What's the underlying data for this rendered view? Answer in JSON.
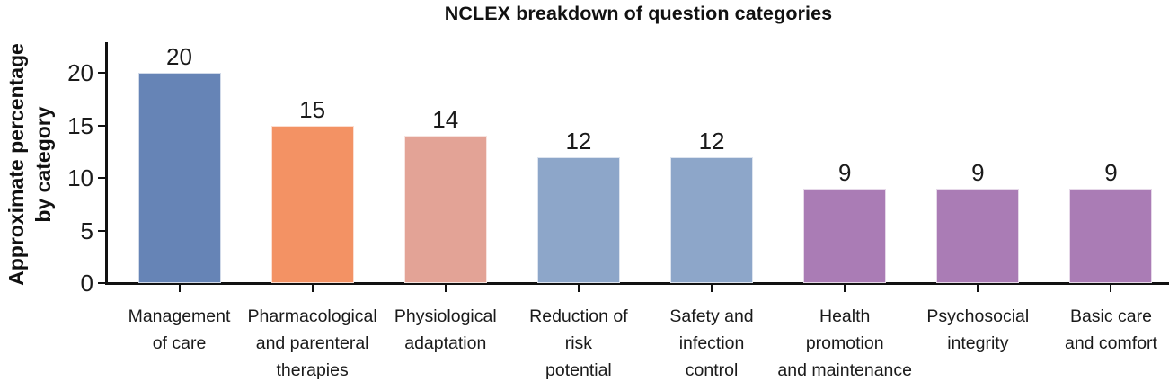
{
  "chart_data": {
    "type": "bar",
    "title": "NCLEX breakdown of question categories",
    "xlabel": "",
    "ylabel": "Approximate percentage by category",
    "ylabel_lines": [
      "Approximate percentage",
      "by category"
    ],
    "yticks": [
      0,
      5,
      10,
      15,
      20
    ],
    "ylim": [
      0,
      23
    ],
    "grid": false,
    "legend": false,
    "categories": [
      "Management of care",
      "Pharmacological and parenteral therapies",
      "Physiological adaptation",
      "Reduction of risk potential",
      "Safety and infection control",
      "Health promotion and maintenance",
      "Psychosocial integrity",
      "Basic care and comfort"
    ],
    "category_label_lines": [
      [
        "Management",
        "of care"
      ],
      [
        "Pharmacological",
        "and parenteral",
        "therapies"
      ],
      [
        "Physiological",
        "adaptation"
      ],
      [
        "Reduction of",
        "risk",
        "potential"
      ],
      [
        "Safety and",
        "infection",
        "control"
      ],
      [
        "Health",
        "promotion",
        "and maintenance"
      ],
      [
        "Psychosocial",
        "integrity"
      ],
      [
        "Basic care",
        "and comfort"
      ]
    ],
    "values": [
      20,
      15,
      14,
      12,
      12,
      9,
      9,
      9
    ],
    "value_labels": [
      "20",
      "15",
      "14",
      "12",
      "12",
      "9",
      "9",
      "9"
    ],
    "bar_colors": [
      "#6684b6",
      "#f39264",
      "#e3a396",
      "#8da6c9",
      "#8da6c9",
      "#aa7cb5",
      "#aa7cb5",
      "#aa7cb5"
    ],
    "axis_color": "#111111",
    "text_color": "#1a1a1a"
  }
}
